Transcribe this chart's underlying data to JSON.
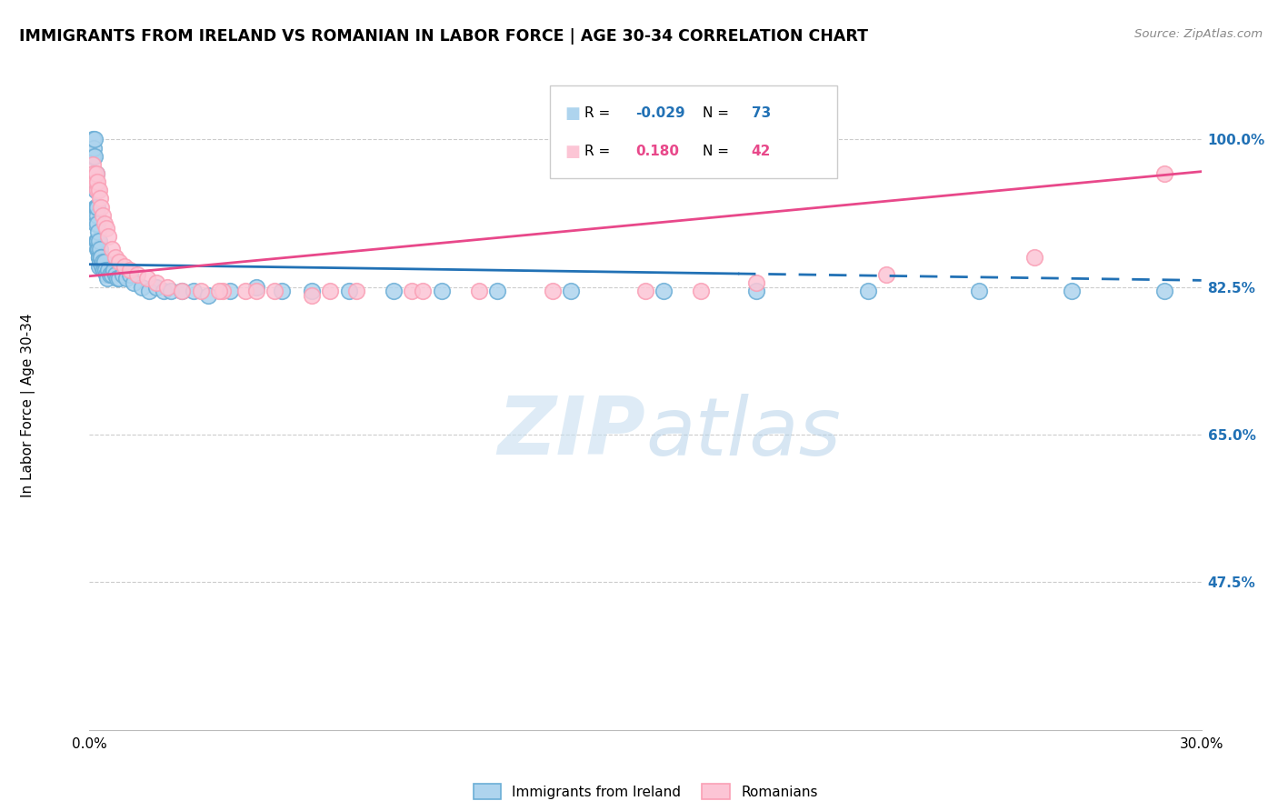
{
  "title": "IMMIGRANTS FROM IRELAND VS ROMANIAN IN LABOR FORCE | AGE 30-34 CORRELATION CHART",
  "source": "Source: ZipAtlas.com",
  "ylabel": "In Labor Force | Age 30-34",
  "xmin": 0.0,
  "xmax": 0.3,
  "ymin": 0.3,
  "ymax": 1.05,
  "ireland_R": -0.029,
  "ireland_N": 73,
  "romanian_R": 0.18,
  "romanian_N": 42,
  "ireland_fill": "#aed4ee",
  "ireland_edge": "#6baed6",
  "romanian_fill": "#fcc5d5",
  "romanian_edge": "#fa9fb5",
  "ireland_line_color": "#2171b5",
  "romanian_line_color": "#e8488a",
  "watermark": "ZIPatlas",
  "ireland_x": [
    0.0008,
    0.001,
    0.001,
    0.0011,
    0.0012,
    0.0013,
    0.0014,
    0.0014,
    0.0015,
    0.0016,
    0.0016,
    0.0017,
    0.0018,
    0.0018,
    0.0019,
    0.002,
    0.002,
    0.0021,
    0.0021,
    0.0022,
    0.0022,
    0.0023,
    0.0024,
    0.0024,
    0.0025,
    0.0026,
    0.0026,
    0.0027,
    0.0028,
    0.0029,
    0.003,
    0.0032,
    0.0034,
    0.0036,
    0.0038,
    0.004,
    0.0042,
    0.0045,
    0.0048,
    0.005,
    0.0055,
    0.006,
    0.0065,
    0.007,
    0.0075,
    0.008,
    0.009,
    0.01,
    0.011,
    0.012,
    0.014,
    0.016,
    0.018,
    0.02,
    0.022,
    0.025,
    0.028,
    0.032,
    0.038,
    0.045,
    0.052,
    0.06,
    0.07,
    0.082,
    0.095,
    0.11,
    0.13,
    0.155,
    0.18,
    0.21,
    0.24,
    0.265,
    0.29
  ],
  "ireland_y": [
    0.96,
    0.98,
    1.0,
    0.96,
    0.99,
    0.98,
    0.96,
    1.0,
    0.94,
    0.92,
    0.96,
    0.9,
    0.88,
    0.92,
    0.96,
    0.88,
    0.91,
    0.87,
    0.9,
    0.88,
    0.92,
    0.87,
    0.87,
    0.89,
    0.85,
    0.86,
    0.88,
    0.86,
    0.87,
    0.855,
    0.86,
    0.86,
    0.85,
    0.855,
    0.845,
    0.855,
    0.845,
    0.84,
    0.835,
    0.845,
    0.84,
    0.84,
    0.845,
    0.84,
    0.835,
    0.835,
    0.84,
    0.835,
    0.84,
    0.83,
    0.825,
    0.82,
    0.825,
    0.82,
    0.82,
    0.82,
    0.82,
    0.815,
    0.82,
    0.825,
    0.82,
    0.82,
    0.82,
    0.82,
    0.82,
    0.82,
    0.82,
    0.82,
    0.82,
    0.82,
    0.82,
    0.82,
    0.82
  ],
  "romanian_x": [
    0.0008,
    0.0012,
    0.0015,
    0.0018,
    0.002,
    0.0022,
    0.0025,
    0.0028,
    0.0032,
    0.0036,
    0.004,
    0.0045,
    0.005,
    0.006,
    0.007,
    0.008,
    0.0095,
    0.011,
    0.013,
    0.0155,
    0.018,
    0.021,
    0.025,
    0.03,
    0.036,
    0.042,
    0.05,
    0.06,
    0.072,
    0.087,
    0.105,
    0.125,
    0.15,
    0.18,
    0.215,
    0.255,
    0.035,
    0.045,
    0.065,
    0.09,
    0.165,
    0.29
  ],
  "romanian_y": [
    0.97,
    0.96,
    0.95,
    0.96,
    0.94,
    0.95,
    0.94,
    0.93,
    0.92,
    0.91,
    0.9,
    0.895,
    0.885,
    0.87,
    0.86,
    0.855,
    0.85,
    0.845,
    0.84,
    0.835,
    0.83,
    0.825,
    0.82,
    0.82,
    0.82,
    0.82,
    0.82,
    0.815,
    0.82,
    0.82,
    0.82,
    0.82,
    0.82,
    0.83,
    0.84,
    0.86,
    0.82,
    0.82,
    0.82,
    0.82,
    0.82,
    0.96
  ]
}
